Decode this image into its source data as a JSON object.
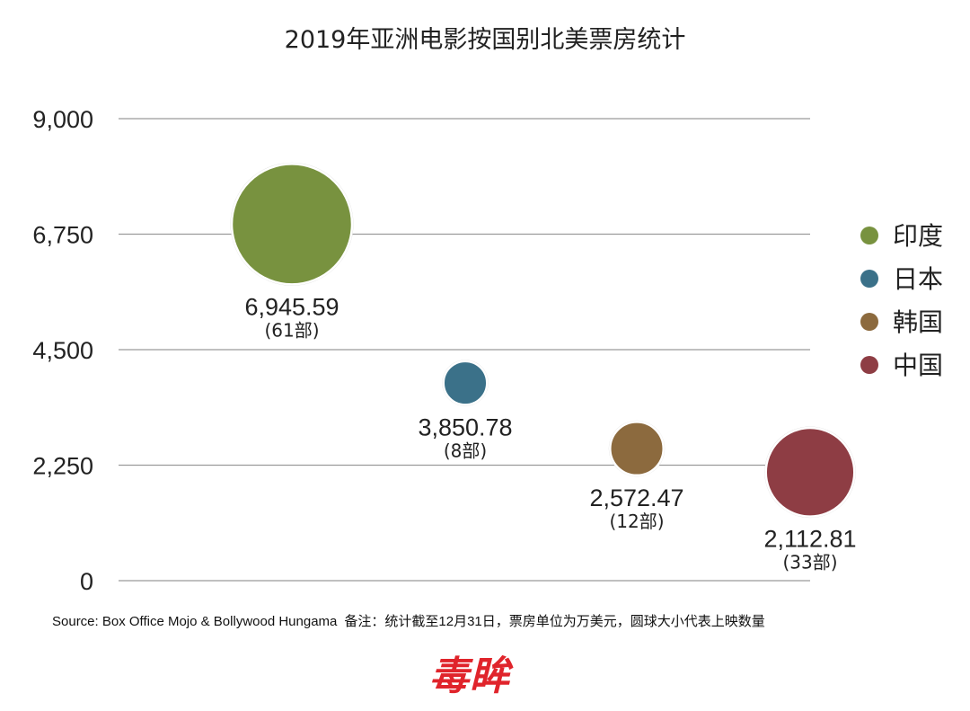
{
  "chart_data": {
    "type": "scatter",
    "title": "2019年亚洲电影按国别北美票房统计",
    "yticks": [
      "0",
      "2,250",
      "4,500",
      "6,750",
      "9,000"
    ],
    "ytick_values": [
      0,
      2250,
      4500,
      6750,
      9000
    ],
    "ylim": [
      0,
      9000
    ],
    "grid": true,
    "legend_position": "right",
    "series": [
      {
        "name": "印度",
        "value": 6945.59,
        "value_label": "6,945.59",
        "films": 61,
        "count_label": "(61部)",
        "color": "#78923f"
      },
      {
        "name": "日本",
        "value": 3850.78,
        "value_label": "3,850.78",
        "films": 8,
        "count_label": "(8部)",
        "color": "#3b7189"
      },
      {
        "name": "韩国",
        "value": 2572.47,
        "value_label": "2,572.47",
        "films": 12,
        "count_label": "(12部)",
        "color": "#8c6a3e"
      },
      {
        "name": "中国",
        "value": 2112.81,
        "value_label": "2,112.81",
        "films": 33,
        "count_label": "(33部)",
        "color": "#8e3d44"
      }
    ]
  },
  "source_text": "Source: Box Office Mojo & Bollywood Hungama",
  "note_text": "备注：统计截至12月31日，票房单位为万美元，圆球大小代表上映数量",
  "logo_text": "毒眸"
}
